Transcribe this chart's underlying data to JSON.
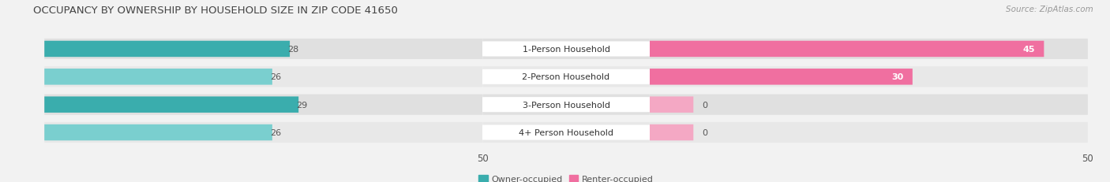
{
  "title": "OCCUPANCY BY OWNERSHIP BY HOUSEHOLD SIZE IN ZIP CODE 41650",
  "source": "Source: ZipAtlas.com",
  "categories": [
    "1-Person Household",
    "2-Person Household",
    "3-Person Household",
    "4+ Person Household"
  ],
  "owner_values": [
    28,
    26,
    29,
    26
  ],
  "renter_values": [
    45,
    30,
    0,
    0
  ],
  "renter_small_values": [
    5,
    5
  ],
  "owner_color_1": "#3AADAD",
  "owner_color_2": "#7ACFCF",
  "renter_color_1": "#F06FA0",
  "renter_color_2": "#F4A8C4",
  "bg_color": "#f2f2f2",
  "row_bg_color": "#e6e6e6",
  "axis_max": 50,
  "bar_height": 0.58,
  "title_fontsize": 9.5,
  "label_fontsize": 8,
  "value_fontsize": 8,
  "tick_fontsize": 8.5,
  "legend_fontsize": 8,
  "source_fontsize": 7.5
}
